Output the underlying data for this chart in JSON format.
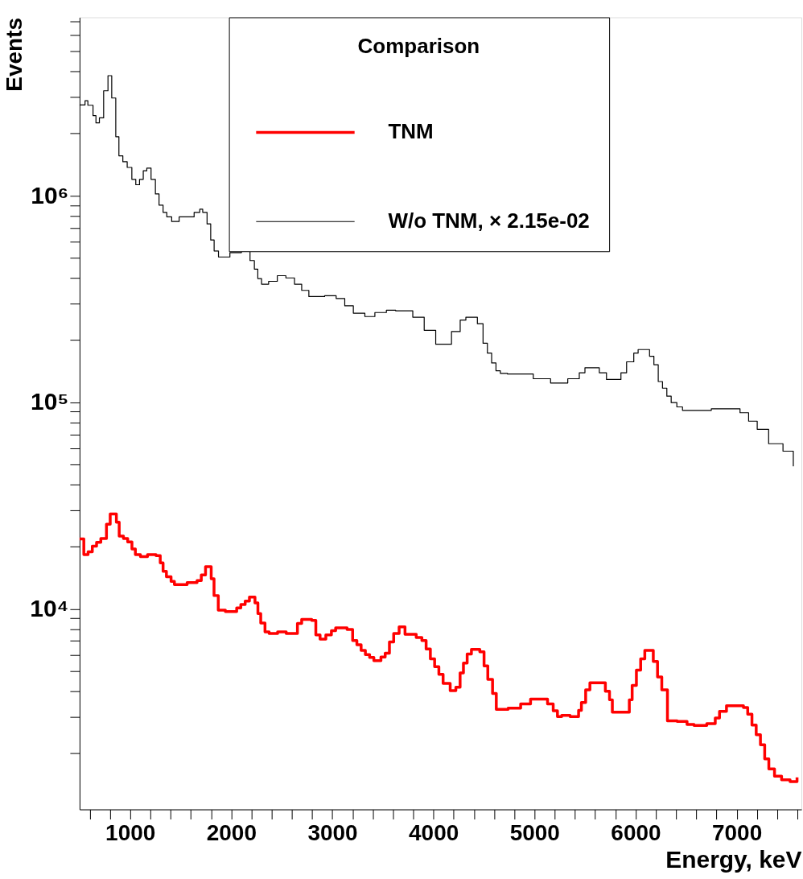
{
  "chart_data": {
    "type": "step",
    "xlabel": "Energy, keV",
    "ylabel": "Events",
    "legend_title": "Comparison",
    "legend": "top right",
    "log": "y",
    "grid": false,
    "xlim": [
      500,
      7640
    ],
    "ylim": [
      1070,
      7300000
    ],
    "xticks": [
      {
        "value": 600,
        "label": null
      },
      {
        "value": 800,
        "label": null
      },
      1000,
      {
        "value": 1200,
        "label": null
      },
      {
        "value": 1400,
        "label": null
      },
      {
        "value": 1600,
        "label": null
      },
      {
        "value": 1800,
        "label": null
      },
      2000,
      {
        "value": 2200,
        "label": null
      },
      {
        "value": 2400,
        "label": null
      },
      {
        "value": 2600,
        "label": null
      },
      {
        "value": 2800,
        "label": null
      },
      3000,
      {
        "value": 3200,
        "label": null
      },
      {
        "value": 3400,
        "label": null
      },
      {
        "value": 3600,
        "label": null
      },
      {
        "value": 3800,
        "label": null
      },
      4000,
      {
        "value": 4200,
        "label": null
      },
      {
        "value": 4400,
        "label": null
      },
      {
        "value": 4600,
        "label": null
      },
      {
        "value": 4800,
        "label": null
      },
      5000,
      {
        "value": 5200,
        "label": null
      },
      {
        "value": 5400,
        "label": null
      },
      {
        "value": 5600,
        "label": null
      },
      {
        "value": 5800,
        "label": null
      },
      6000,
      {
        "value": 6200,
        "label": null
      },
      {
        "value": 6400,
        "label": null
      },
      {
        "value": 6600,
        "label": null
      },
      {
        "value": 6800,
        "label": null
      },
      7000,
      {
        "value": 7200,
        "label": null
      },
      {
        "value": 7400,
        "label": null
      },
      {
        "value": 7600,
        "label": null
      }
    ],
    "yticks": [
      {
        "value": 2000,
        "label": null
      },
      {
        "value": 3000,
        "label": null
      },
      {
        "value": 4000,
        "label": null
      },
      {
        "value": 5000,
        "label": null
      },
      {
        "value": 6000,
        "label": null
      },
      {
        "value": 7000,
        "label": null
      },
      {
        "value": 8000,
        "label": null
      },
      {
        "value": 9000,
        "label": null
      },
      {
        "value": 10000,
        "label": "10⁴"
      },
      {
        "value": 20000,
        "label": null
      },
      {
        "value": 30000,
        "label": null
      },
      {
        "value": 40000,
        "label": null
      },
      {
        "value": 50000,
        "label": null
      },
      {
        "value": 60000,
        "label": null
      },
      {
        "value": 70000,
        "label": null
      },
      {
        "value": 80000,
        "label": null
      },
      {
        "value": 90000,
        "label": null
      },
      {
        "value": 100000,
        "label": "10⁵"
      },
      {
        "value": 200000,
        "label": null
      },
      {
        "value": 300000,
        "label": null
      },
      {
        "value": 400000,
        "label": null
      },
      {
        "value": 500000,
        "label": null
      },
      {
        "value": 600000,
        "label": null
      },
      {
        "value": 700000,
        "label": null
      },
      {
        "value": 800000,
        "label": null
      },
      {
        "value": 900000,
        "label": null
      },
      {
        "value": 1000000,
        "label": "10⁶"
      },
      {
        "value": 2000000,
        "label": null
      },
      {
        "value": 3000000,
        "label": null
      },
      {
        "value": 4000000,
        "label": null
      },
      {
        "value": 5000000,
        "label": null
      },
      {
        "value": 6000000,
        "label": null
      },
      {
        "value": 7000000,
        "label": null
      }
    ],
    "series": [
      {
        "name": "TNM",
        "color": "#ff0000",
        "x": [
          500,
          542,
          584,
          626,
          668,
          710,
          766,
          803,
          864,
          892,
          934,
          976,
          1018,
          1052,
          1102,
          1172,
          1256,
          1298,
          1326,
          1359,
          1405,
          1438,
          1564,
          1662,
          1704,
          1746,
          1802,
          1830,
          1872,
          1942,
          2054,
          2095,
          2138,
          2180,
          2235,
          2264,
          2292,
          2334,
          2375,
          2459,
          2544,
          2655,
          2697,
          2796,
          2837,
          2879,
          2936,
          2991,
          3033,
          3146,
          3201,
          3243,
          3285,
          3327,
          3369,
          3411,
          3481,
          3523,
          3565,
          3607,
          3661,
          3719,
          3830,
          3886,
          3928,
          3970,
          4012,
          4054,
          4096,
          4166,
          4222,
          4264,
          4297,
          4334,
          4376,
          4459,
          4501,
          4538,
          4585,
          4622,
          4739,
          4863,
          4961,
          5129,
          5185,
          5227,
          5269,
          5352,
          5436,
          5464,
          5506,
          5548,
          5701,
          5742,
          5770,
          5938,
          5966,
          6008,
          6050,
          6091,
          6175,
          6217,
          6259,
          6315,
          6411,
          6509,
          6578,
          6704,
          6788,
          6830,
          6899,
          7067,
          7109,
          7151,
          7193,
          7235,
          7277,
          7318,
          7374,
          7444,
          7528,
          7597
        ],
        "values": [
          21800,
          18300,
          18900,
          20100,
          21000,
          21900,
          25700,
          28800,
          26300,
          22500,
          21900,
          21100,
          19500,
          18300,
          17900,
          18300,
          18100,
          16700,
          15200,
          14300,
          13600,
          13100,
          13400,
          13700,
          14600,
          16000,
          14000,
          11600,
          9850,
          9700,
          10100,
          10500,
          10900,
          11400,
          10700,
          9500,
          8550,
          7730,
          7600,
          7730,
          7600,
          8500,
          8900,
          8800,
          7480,
          7140,
          7480,
          7850,
          8100,
          7950,
          7030,
          6710,
          6300,
          6010,
          5820,
          5610,
          5850,
          6100,
          6920,
          7600,
          8190,
          7530,
          7260,
          7030,
          6400,
          5730,
          5250,
          4820,
          4360,
          4020,
          4180,
          4900,
          5470,
          6050,
          6360,
          6200,
          5300,
          4560,
          3900,
          3260,
          3310,
          3470,
          3660,
          3470,
          3210,
          3010,
          3050,
          3010,
          3230,
          3520,
          4060,
          4390,
          3990,
          3630,
          3160,
          3630,
          4260,
          5050,
          5730,
          6300,
          5560,
          4680,
          4060,
          2870,
          2850,
          2760,
          2730,
          2780,
          2960,
          3190,
          3400,
          3330,
          3090,
          2740,
          2460,
          2200,
          1880,
          1680,
          1550,
          1490,
          1460,
          1530
        ]
      },
      {
        "name": "W/o TNM, × 2.15e-02",
        "color": "#000000",
        "x": [
          500,
          554,
          582,
          633,
          662,
          696,
          738,
          781,
          818,
          858,
          889,
          928,
          971,
          1017,
          1056,
          1093,
          1130,
          1165,
          1207,
          1250,
          1286,
          1326,
          1363,
          1411,
          1485,
          1633,
          1689,
          1718,
          1761,
          1797,
          1831,
          1874,
          1987,
          2101,
          2186,
          2229,
          2263,
          2300,
          2370,
          2456,
          2541,
          2626,
          2697,
          2768,
          2924,
          3038,
          3123,
          3208,
          3322,
          3421,
          3535,
          3627,
          3796,
          3909,
          4023,
          4179,
          4265,
          4321,
          4435,
          4491,
          4534,
          4576,
          4619,
          4662,
          4733,
          4988,
          5159,
          5329,
          5443,
          5499,
          5641,
          5712,
          5855,
          5911,
          5982,
          6025,
          6138,
          6181,
          6224,
          6266,
          6309,
          6352,
          6408,
          6464,
          6749,
          7033,
          7118,
          7203,
          7316,
          7458,
          7560
        ],
        "values": [
          2750000,
          2880000,
          2740000,
          2440000,
          2250000,
          2380000,
          3220000,
          3810000,
          2970000,
          1930000,
          1560000,
          1460000,
          1370000,
          1200000,
          1130000,
          1200000,
          1320000,
          1360000,
          1200000,
          1020000,
          900000,
          830000,
          790000,
          750000,
          790000,
          830000,
          860000,
          830000,
          730000,
          610000,
          540000,
          505000,
          530000,
          540000,
          485000,
          441000,
          397000,
          373000,
          385000,
          410000,
          400000,
          373000,
          348000,
          325000,
          328000,
          318000,
          293000,
          270000,
          260000,
          272000,
          279000,
          277000,
          258000,
          223000,
          191000,
          220000,
          250000,
          258000,
          240000,
          193000,
          173000,
          155000,
          142000,
          138000,
          137000,
          130000,
          124000,
          130000,
          139000,
          147000,
          139000,
          129000,
          139000,
          157000,
          173000,
          180000,
          167000,
          152000,
          126000,
          117000,
          107000,
          99600,
          95000,
          91400,
          93000,
          89000,
          81000,
          74000,
          63000,
          58000,
          49000
        ]
      }
    ]
  }
}
